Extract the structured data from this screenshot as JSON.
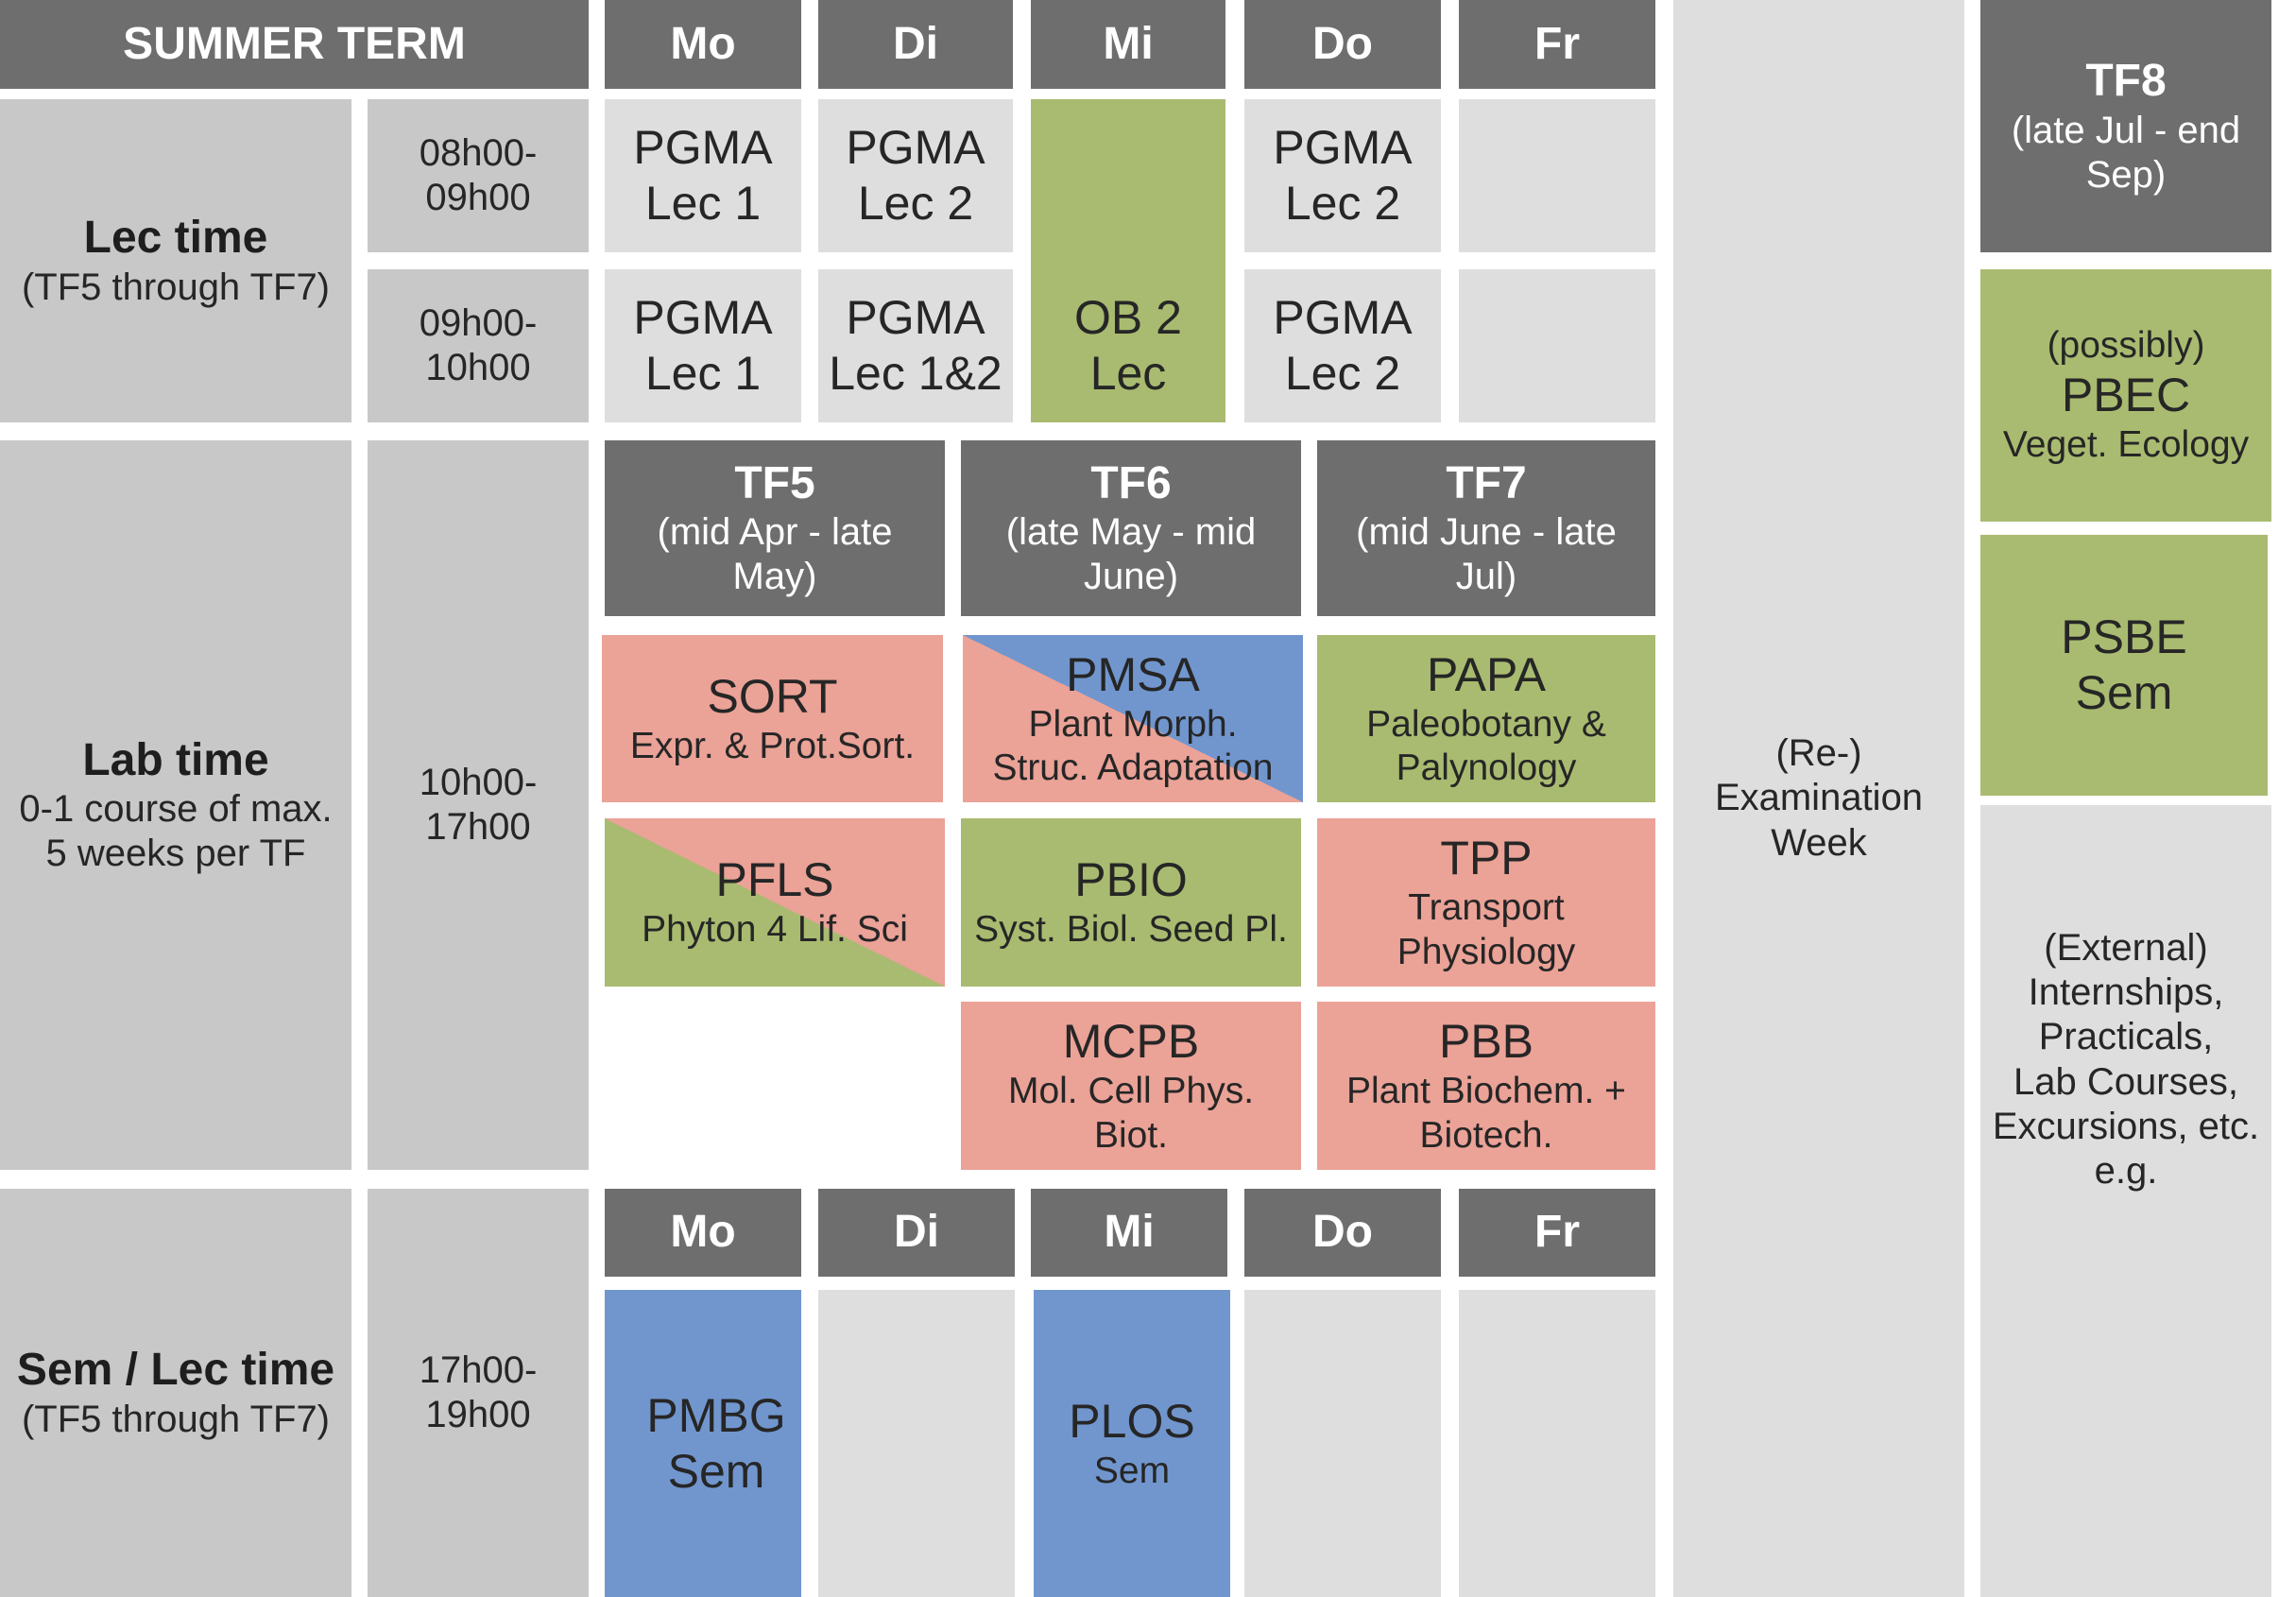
{
  "title": "SUMMER TERM",
  "days_top": [
    "Mo",
    "Di",
    "Mi",
    "Do",
    "Fr"
  ],
  "days_bottom": [
    "Mo",
    "Di",
    "Mi",
    "Do",
    "Fr"
  ],
  "rows": {
    "lec": {
      "title": "Lec time",
      "subtitle": "(TF5 through TF7)",
      "slots": [
        {
          "from": "08h00-",
          "to": "09h00"
        },
        {
          "from": "09h00-",
          "to": "10h00"
        }
      ]
    },
    "lab": {
      "title": "Lab time",
      "subtitle": [
        "0-1 course of max.",
        "5 weeks per TF"
      ],
      "from": "10h00-",
      "to": "17h00"
    },
    "sem": {
      "title": "Sem / Lec time",
      "subtitle": "(TF5 through TF7)",
      "from": "17h00-",
      "to": "19h00"
    }
  },
  "lectures": {
    "mo1": [
      "PGMA",
      "Lec 1"
    ],
    "di1": [
      "PGMA",
      "Lec 2"
    ],
    "do1": [
      "PGMA",
      "Lec 2"
    ],
    "mo2": [
      "PGMA",
      "Lec 1"
    ],
    "di2": [
      "PGMA",
      "Lec 1&2"
    ],
    "mi": [
      "OB 2",
      "Lec"
    ],
    "do2": [
      "PGMA",
      "Lec 2"
    ]
  },
  "terms": {
    "tf5": {
      "name": "TF5",
      "range": "(mid Apr - late May)"
    },
    "tf6": {
      "name": "TF6",
      "range": "(late May - mid June)"
    },
    "tf7": {
      "name": "TF7",
      "range": "(mid June - late Jul)"
    },
    "tf8": {
      "name": "TF8",
      "range": "(late Jul - end Sep)"
    }
  },
  "courses": {
    "sort": {
      "code": "SORT",
      "name": "Expr. & Prot.Sort."
    },
    "pmsa": {
      "code": "PMSA",
      "name": [
        "Plant Morph.",
        "Struc. Adaptation"
      ]
    },
    "papa": {
      "code": "PAPA",
      "name": [
        "Paleobotany &",
        "Palynology"
      ]
    },
    "pfls": {
      "code": "PFLS",
      "name": "Phyton 4 Lif. Sci"
    },
    "pbio": {
      "code": "PBIO",
      "name": "Syst. Biol. Seed Pl."
    },
    "tpp": {
      "code": "TPP",
      "name": [
        "Transport",
        "Physiology"
      ]
    },
    "mcpb": {
      "code": "MCPB",
      "name": [
        "Mol. Cell Phys.",
        "Biot."
      ]
    },
    "pbb": {
      "code": "PBB",
      "name": [
        "Plant Biochem. +",
        "Biotech."
      ]
    }
  },
  "seminars": {
    "pmbg": [
      "PMBG",
      "Sem"
    ],
    "plos": {
      "code": "PLOS",
      "type": "Sem"
    }
  },
  "exam_week": [
    "(Re-)",
    "Examination",
    "Week"
  ],
  "tf8_column": {
    "pbec": {
      "note": "(possibly)",
      "code": "PBEC",
      "name": "Veget. Ecology"
    },
    "psbe": [
      "PSBE",
      "Sem"
    ],
    "external": [
      "(External)",
      "Internships,",
      "Practicals,",
      "Lab Courses,",
      "Excursions, etc.",
      "e.g."
    ]
  },
  "colors": {
    "header": "#6e6e6e",
    "row_label": "#c8c8c8",
    "empty_cell": "#dedede",
    "green": "#a9bb70",
    "pink": "#eba297",
    "blue": "#7196ce"
  }
}
